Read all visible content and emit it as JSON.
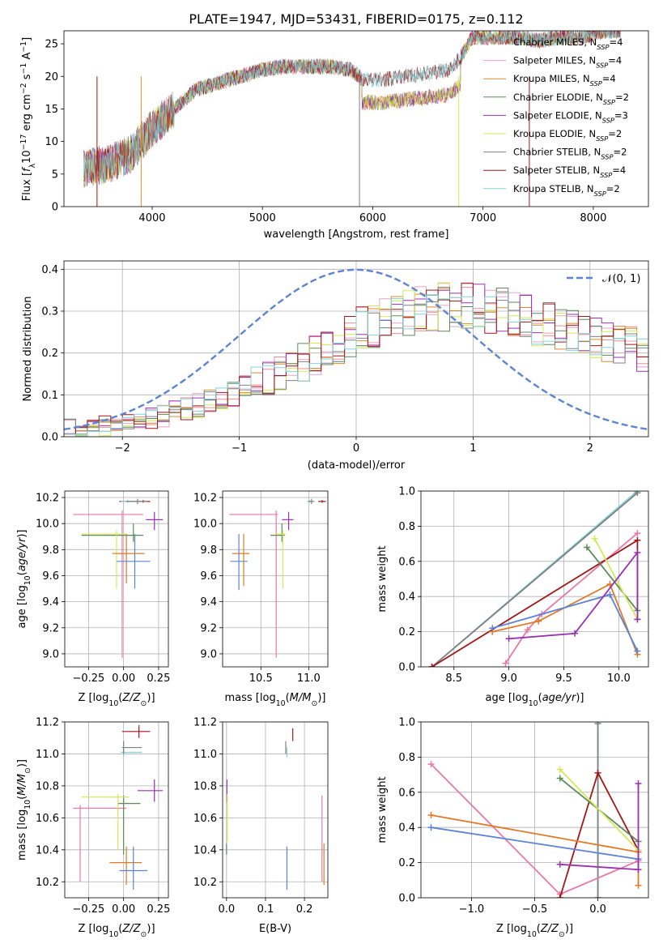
{
  "title": "PLATE=1947, MJD=53431, FIBERID=0175, z=0.112",
  "colors": {
    "Chabrier MILES": "#f08c8c",
    "Salpeter MILES": "#e6a2c8",
    "Kroupa MILES": "#d98c2e",
    "Chabrier ELODIE": "#5c8a5c",
    "Salpeter ELODIE": "#9b30b3",
    "Kroupa ELODIE": "#d4e85a",
    "Chabrier STELIB": "#808080",
    "Salpeter STELIB": "#a01818",
    "Kroupa STELIB": "#80d4d8",
    "normal": "#5b84d4",
    "pink": "#e879a6",
    "orange": "#e07a28",
    "blue": "#5b84d4"
  },
  "chart_data": [
    {
      "id": "spectrum",
      "type": "line",
      "xlabel": "wavelength [Angstrom, rest frame]",
      "ylabel": "Flux [f_λ 10^-17 erg cm^-2 s^-1 A^-1]",
      "xlim": [
        3200,
        8500
      ],
      "ylim": [
        0,
        27
      ],
      "xticks": [
        4000,
        5000,
        6000,
        7000,
        8000
      ],
      "yticks": [
        0,
        5,
        10,
        15,
        20,
        25
      ],
      "legend_position": "upper-right",
      "legend": [
        {
          "base": "Chabrier MILES, N",
          "sub": "SSP",
          "tail": "=4"
        },
        {
          "base": "Salpeter MILES, N",
          "sub": "SSP",
          "tail": "=4"
        },
        {
          "base": "Kroupa MILES, N",
          "sub": "SSP",
          "tail": "=4"
        },
        {
          "base": "Chabrier ELODIE, N",
          "sub": "SSP",
          "tail": "=2"
        },
        {
          "base": "Salpeter ELODIE, N",
          "sub": "SSP",
          "tail": "=3"
        },
        {
          "base": "Kroupa ELODIE, N",
          "sub": "SSP",
          "tail": "=2"
        },
        {
          "base": "Chabrier STELIB, N",
          "sub": "SSP",
          "tail": "=2"
        },
        {
          "base": "Salpeter STELIB, N",
          "sub": "SSP",
          "tail": "=4"
        },
        {
          "base": "Kroupa STELIB, N",
          "sub": "SSP",
          "tail": "=2"
        }
      ],
      "continuum": {
        "x": [
          3380,
          3600,
          3800,
          4000,
          4200,
          4400,
          4600,
          4800,
          5000,
          5200,
          5400,
          5600,
          5800,
          5880,
          5900,
          6100,
          6300,
          6500,
          6700,
          6800,
          6900,
          7100,
          7300,
          7500,
          7700,
          7900,
          8100,
          8250
        ],
        "y": [
          6,
          6.5,
          8,
          12,
          15,
          18,
          19,
          20,
          21,
          21.5,
          21.5,
          21.5,
          21,
          20,
          19.5,
          19.5,
          20,
          20.5,
          21,
          23,
          26,
          26,
          26,
          25.5,
          26,
          26,
          27,
          27
        ],
        "model_ratio": 0.82
      }
    },
    {
      "id": "residual_distribution",
      "type": "histogram",
      "xlabel": "(data-model)/error",
      "ylabel": "Normed distribution",
      "xlim": [
        -2.5,
        2.5
      ],
      "ylim": [
        0,
        0.42
      ],
      "xticks": [
        -2,
        -1,
        0,
        1,
        2
      ],
      "yticks": [
        0,
        0.1,
        0.2,
        0.3,
        0.4
      ],
      "legend_position": "upper-right",
      "normal_label": "𝒩(0, 1)",
      "bins": {
        "start": -2.5,
        "width": 0.1
      },
      "envelope": {
        "x": [
          -2.5,
          -2.0,
          -1.5,
          -1.0,
          -0.5,
          0.0,
          0.5,
          1.0,
          1.5,
          2.0,
          2.5
        ],
        "y": [
          0.02,
          0.03,
          0.06,
          0.11,
          0.17,
          0.25,
          0.3,
          0.31,
          0.28,
          0.24,
          0.2
        ]
      }
    },
    {
      "id": "age_vs_Z",
      "type": "errorbar",
      "xlabel": "Z [log10(Z/Z⊙)]",
      "ylabel": "age [log10(age/yr)]",
      "xlim": [
        -0.42,
        0.32
      ],
      "ylim": [
        8.9,
        10.25
      ],
      "xticks": [
        -0.25,
        0.0,
        0.25
      ],
      "xticklabels": [
        "−0.25",
        "0.00",
        "0.25"
      ],
      "yticks": [
        9.0,
        9.2,
        9.4,
        9.6,
        9.8,
        10.0,
        10.2
      ],
      "points": [
        {
          "color": "pink",
          "x": -0.01,
          "xlo": -0.36,
          "xhi": 0.14,
          "y": 10.07,
          "ylo": 8.97,
          "yhi": 10.1
        },
        {
          "color": "Salpeter ELODIE",
          "x": 0.22,
          "xlo": 0.16,
          "xhi": 0.28,
          "y": 10.03,
          "ylo": 9.95,
          "yhi": 10.09
        },
        {
          "color": "Salpeter STELIB",
          "x": 0.14,
          "xlo": -0.03,
          "xhi": 0.19,
          "y": 10.17,
          "ylo": 10.16,
          "yhi": 10.18
        },
        {
          "color": "Chabrier ELODIE",
          "x": 0.07,
          "xlo": -0.3,
          "xhi": 0.14,
          "y": 9.91,
          "ylo": 9.86,
          "yhi": 10.0
        },
        {
          "color": "Kroupa ELODIE",
          "x": -0.05,
          "xlo": -0.3,
          "xhi": 0.02,
          "y": 9.92,
          "ylo": 9.5,
          "yhi": 9.95
        },
        {
          "color": "orange",
          "x": 0.02,
          "xlo": -0.08,
          "xhi": 0.15,
          "y": 9.77,
          "ylo": 9.54,
          "yhi": 9.92
        },
        {
          "color": "blue",
          "x": 0.08,
          "xlo": -0.05,
          "xhi": 0.19,
          "y": 9.71,
          "ylo": 9.5,
          "yhi": 9.92
        },
        {
          "color": "Kroupa STELIB",
          "x": 0.03,
          "xlo": -0.02,
          "xhi": 0.08,
          "y": 10.17,
          "ylo": 10.16,
          "yhi": 10.18
        },
        {
          "color": "Chabrier STELIB",
          "x": 0.1,
          "xlo": 0.02,
          "xhi": 0.17,
          "y": 10.17,
          "ylo": 10.15,
          "yhi": 10.19
        }
      ]
    },
    {
      "id": "age_vs_mass",
      "type": "errorbar",
      "xlabel": "mass [log10(M/M⊙)]",
      "ylabel": "",
      "xlim": [
        10.1,
        11.2
      ],
      "ylim": [
        8.9,
        10.25
      ],
      "xticks": [
        10.5,
        11.0
      ],
      "xticklabels": [
        "10.5",
        "11.0"
      ],
      "yticks": [
        9.0,
        9.2,
        9.4,
        9.6,
        9.8,
        10.0,
        10.2
      ],
      "points": [
        {
          "color": "pink",
          "x": 10.66,
          "xlo": 10.17,
          "xhi": 10.68,
          "y": 10.07,
          "ylo": 8.97,
          "yhi": 10.1
        },
        {
          "color": "Salpeter ELODIE",
          "x": 10.79,
          "xlo": 10.72,
          "xhi": 10.84,
          "y": 10.03,
          "ylo": 9.95,
          "yhi": 10.09
        },
        {
          "color": "Salpeter STELIB",
          "x": 11.14,
          "xlo": 11.1,
          "xhi": 11.18,
          "y": 10.17,
          "ylo": 10.16,
          "yhi": 10.18
        },
        {
          "color": "Chabrier ELODIE",
          "x": 10.72,
          "xlo": 10.6,
          "xhi": 10.75,
          "y": 9.91,
          "ylo": 9.86,
          "yhi": 10.0
        },
        {
          "color": "Kroupa ELODIE",
          "x": 10.73,
          "xlo": 10.65,
          "xhi": 10.76,
          "y": 9.92,
          "ylo": 9.5,
          "yhi": 9.95
        },
        {
          "color": "orange",
          "x": 10.32,
          "xlo": 10.2,
          "xhi": 10.38,
          "y": 9.77,
          "ylo": 9.52,
          "yhi": 9.92
        },
        {
          "color": "blue",
          "x": 10.27,
          "xlo": 10.18,
          "xhi": 10.36,
          "y": 9.71,
          "ylo": 9.49,
          "yhi": 9.92
        },
        {
          "color": "Kroupa STELIB",
          "x": 11.01,
          "xlo": 10.98,
          "xhi": 11.04,
          "y": 10.17,
          "ylo": 10.16,
          "yhi": 10.18
        },
        {
          "color": "Chabrier STELIB",
          "x": 11.03,
          "xlo": 11.0,
          "xhi": 11.06,
          "y": 10.17,
          "ylo": 10.15,
          "yhi": 10.19
        }
      ]
    },
    {
      "id": "mass_weight_vs_age",
      "type": "line",
      "xlabel": "age [log10(age/yr)]",
      "ylabel": "mass weight",
      "xlim": [
        8.2,
        10.27
      ],
      "ylim": [
        0,
        1.0
      ],
      "xticks": [
        8.5,
        9.0,
        9.5,
        10.0
      ],
      "xticklabels": [
        "8.5",
        "9.0",
        "9.5",
        "10.0"
      ],
      "yticks": [
        0,
        0.2,
        0.4,
        0.6,
        0.8,
        1.0
      ],
      "yticklabels": [
        "0.0",
        "0.2",
        "0.4",
        "0.6",
        "0.8",
        "1.0"
      ],
      "series": [
        {
          "color": "Kroupa STELIB",
          "x": [
            8.3,
            10.17
          ],
          "y": [
            0.0,
            1.0
          ]
        },
        {
          "color": "Chabrier STELIB",
          "x": [
            8.3,
            10.17
          ],
          "y": [
            0.0,
            0.99
          ]
        },
        {
          "color": "pink",
          "x": [
            8.97,
            9.17,
            9.3,
            10.17
          ],
          "y": [
            0.02,
            0.21,
            0.3,
            0.76
          ]
        },
        {
          "color": "Salpeter STELIB",
          "x": [
            8.3,
            10.17,
            10.17
          ],
          "y": [
            0.0,
            0.72,
            0.27
          ]
        },
        {
          "color": "Chabrier ELODIE",
          "x": [
            9.71,
            10.17
          ],
          "y": [
            0.68,
            0.32
          ]
        },
        {
          "color": "Kroupa ELODIE",
          "x": [
            9.78,
            10.17
          ],
          "y": [
            0.73,
            0.27
          ]
        },
        {
          "color": "orange",
          "x": [
            8.85,
            9.27,
            9.92,
            10.17
          ],
          "y": [
            0.2,
            0.26,
            0.47,
            0.07
          ]
        },
        {
          "color": "blue",
          "x": [
            8.85,
            9.92,
            10.17
          ],
          "y": [
            0.22,
            0.41,
            0.09
          ]
        },
        {
          "color": "Salpeter ELODIE",
          "x": [
            9.0,
            9.6,
            10.17,
            10.17
          ],
          "y": [
            0.16,
            0.19,
            0.65,
            0.27
          ]
        }
      ]
    },
    {
      "id": "mass_vs_Z",
      "type": "errorbar",
      "xlabel": "Z [log10(Z/Z⊙)]",
      "ylabel": "mass [log10(M/M⊙)]",
      "xlim": [
        -0.42,
        0.32
      ],
      "ylim": [
        10.1,
        11.2
      ],
      "xticks": [
        -0.25,
        0.0,
        0.25
      ],
      "xticklabels": [
        "−0.25",
        "0.00",
        "0.25"
      ],
      "yticks": [
        10.2,
        10.4,
        10.6,
        10.8,
        11.0,
        11.2
      ],
      "points": [
        {
          "color": "pink",
          "x": -0.31,
          "xlo": -0.36,
          "xhi": 0.02,
          "y": 10.66,
          "ylo": 10.2,
          "yhi": 10.68
        },
        {
          "color": "Salpeter ELODIE",
          "x": 0.22,
          "xlo": 0.1,
          "xhi": 0.28,
          "y": 10.77,
          "ylo": 10.7,
          "yhi": 10.84
        },
        {
          "color": "Salpeter STELIB",
          "x": 0.11,
          "xlo": -0.01,
          "xhi": 0.19,
          "y": 11.14,
          "ylo": 11.1,
          "yhi": 11.18
        },
        {
          "color": "Chabrier ELODIE",
          "x": 0.0,
          "xlo": -0.04,
          "xhi": 0.12,
          "y": 10.69,
          "ylo": 10.37,
          "yhi": 10.74
        },
        {
          "color": "Kroupa ELODIE",
          "x": -0.04,
          "xlo": -0.3,
          "xhi": 0.04,
          "y": 10.73,
          "ylo": 10.4,
          "yhi": 10.75
        },
        {
          "color": "orange",
          "x": 0.02,
          "xlo": -0.1,
          "xhi": 0.13,
          "y": 10.32,
          "ylo": 10.18,
          "yhi": 10.42
        },
        {
          "color": "blue",
          "x": 0.07,
          "xlo": -0.03,
          "xhi": 0.17,
          "y": 10.27,
          "ylo": 10.15,
          "yhi": 10.42
        },
        {
          "color": "Kroupa STELIB",
          "x": 0.0,
          "xlo": -0.02,
          "xhi": 0.13,
          "y": 11.01,
          "ylo": 10.98,
          "yhi": 11.04
        },
        {
          "color": "Chabrier STELIB",
          "x": 0.0,
          "xlo": -0.01,
          "xhi": 0.13,
          "y": 11.04,
          "ylo": 11.0,
          "yhi": 11.08
        }
      ]
    },
    {
      "id": "mass_vs_ebv",
      "type": "errorbar",
      "xlabel": "E(B-V)",
      "ylabel": "",
      "xlim": [
        -0.01,
        0.26
      ],
      "ylim": [
        10.1,
        11.2
      ],
      "xticks": [
        0.0,
        0.1,
        0.2
      ],
      "xticklabels": [
        "0.0",
        "0.1",
        "0.2"
      ],
      "yticks": [
        10.2,
        10.4,
        10.6,
        10.8,
        11.0,
        11.2
      ],
      "points": [
        {
          "color": "pink",
          "x": 0.245,
          "xlo": 0.245,
          "xhi": 0.245,
          "y": 10.46,
          "ylo": 10.2,
          "yhi": 10.74
        },
        {
          "color": "orange",
          "x": 0.25,
          "xlo": 0.25,
          "xhi": 0.25,
          "y": 10.32,
          "ylo": 10.18,
          "yhi": 10.44
        },
        {
          "color": "Salpeter ELODIE",
          "x": 0.001,
          "xlo": 0.001,
          "xhi": 0.001,
          "y": 10.77,
          "ylo": 10.7,
          "yhi": 10.84
        },
        {
          "color": "Kroupa ELODIE",
          "x": 0.002,
          "xlo": 0.002,
          "xhi": 0.002,
          "y": 10.6,
          "ylo": 10.45,
          "yhi": 10.75
        },
        {
          "color": "Chabrier ELODIE",
          "x": 0.0,
          "xlo": 0.0,
          "xhi": 0.0,
          "y": 10.4,
          "ylo": 10.37,
          "yhi": 10.44
        },
        {
          "color": "blue",
          "x": 0.155,
          "xlo": 0.155,
          "xhi": 0.155,
          "y": 10.28,
          "ylo": 10.15,
          "yhi": 10.42
        },
        {
          "color": "Chabrier STELIB",
          "x": 0.152,
          "xlo": 0.152,
          "xhi": 0.152,
          "y": 11.04,
          "ylo": 11.0,
          "yhi": 11.08
        },
        {
          "color": "Kroupa STELIB",
          "x": 0.155,
          "xlo": 0.155,
          "xhi": 0.155,
          "y": 11.01,
          "ylo": 10.98,
          "yhi": 11.04
        },
        {
          "color": "Salpeter STELIB",
          "x": 0.17,
          "xlo": 0.17,
          "xhi": 0.17,
          "y": 11.12,
          "ylo": 11.08,
          "yhi": 11.16
        }
      ]
    },
    {
      "id": "mass_weight_vs_Z",
      "type": "line",
      "xlabel": "Z [log10(Z/Z⊙)]",
      "ylabel": "mass weight",
      "xlim": [
        -1.4,
        0.4
      ],
      "ylim": [
        0,
        1.0
      ],
      "xticks": [
        -1.0,
        -0.5,
        0.0
      ],
      "xticklabels": [
        "−1.0",
        "−0.5",
        "0.0"
      ],
      "yticks": [
        0,
        0.2,
        0.4,
        0.6,
        0.8,
        1.0
      ],
      "yticklabels": [
        "0.0",
        "0.2",
        "0.4",
        "0.6",
        "0.8",
        "1.0"
      ],
      "series": [
        {
          "color": "Kroupa STELIB",
          "x": [
            0.0,
            0.0
          ],
          "y": [
            1.0,
            0.0
          ]
        },
        {
          "color": "Chabrier STELIB",
          "x": [
            0.0,
            0.0
          ],
          "y": [
            0.99,
            0.0
          ]
        },
        {
          "color": "pink",
          "x": [
            -1.32,
            -0.3,
            0.32
          ],
          "y": [
            0.76,
            0.02,
            0.21
          ]
        },
        {
          "color": "Salpeter STELIB",
          "x": [
            -0.3,
            0.0,
            0.32
          ],
          "y": [
            0.0,
            0.71,
            0.27
          ]
        },
        {
          "color": "Chabrier ELODIE",
          "x": [
            -0.3,
            0.32
          ],
          "y": [
            0.68,
            0.32
          ]
        },
        {
          "color": "Kroupa ELODIE",
          "x": [
            -0.3,
            0.32
          ],
          "y": [
            0.73,
            0.27
          ]
        },
        {
          "color": "orange",
          "x": [
            -1.32,
            0.32,
            0.32
          ],
          "y": [
            0.47,
            0.26,
            0.07
          ]
        },
        {
          "color": "blue",
          "x": [
            -1.32,
            0.32
          ],
          "y": [
            0.4,
            0.22
          ]
        },
        {
          "color": "Salpeter ELODIE",
          "x": [
            -0.3,
            0.32,
            0.32
          ],
          "y": [
            0.19,
            0.16,
            0.65
          ]
        }
      ]
    }
  ]
}
